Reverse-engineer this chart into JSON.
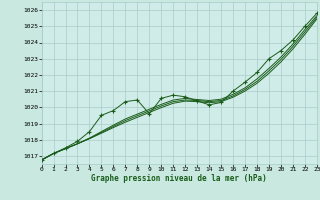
{
  "title": "Graphe pression niveau de la mer (hPa)",
  "background_color": "#c8e8e0",
  "plot_bg_color": "#d0ece8",
  "grid_color": "#a8ccc8",
  "line_color": "#1a5c1a",
  "xlim": [
    0,
    23
  ],
  "ylim": [
    1016.5,
    1026.5
  ],
  "xticks": [
    0,
    1,
    2,
    3,
    4,
    5,
    6,
    7,
    8,
    9,
    10,
    11,
    12,
    13,
    14,
    15,
    16,
    17,
    18,
    19,
    20,
    21,
    22,
    23
  ],
  "yticks": [
    1017,
    1018,
    1019,
    1020,
    1021,
    1022,
    1023,
    1024,
    1025,
    1026
  ],
  "smooth1": [
    1016.75,
    1017.15,
    1017.45,
    1017.75,
    1018.1,
    1018.5,
    1018.9,
    1019.28,
    1019.58,
    1019.88,
    1020.18,
    1020.45,
    1020.55,
    1020.48,
    1020.42,
    1020.5,
    1020.8,
    1021.2,
    1021.75,
    1022.4,
    1023.1,
    1023.9,
    1024.8,
    1025.65
  ],
  "smooth2": [
    1016.75,
    1017.15,
    1017.45,
    1017.75,
    1018.08,
    1018.45,
    1018.82,
    1019.18,
    1019.48,
    1019.78,
    1020.08,
    1020.35,
    1020.45,
    1020.42,
    1020.35,
    1020.42,
    1020.7,
    1021.1,
    1021.6,
    1022.25,
    1022.95,
    1023.75,
    1024.65,
    1025.55
  ],
  "smooth3": [
    1016.75,
    1017.15,
    1017.45,
    1017.75,
    1018.06,
    1018.4,
    1018.75,
    1019.08,
    1019.38,
    1019.68,
    1019.98,
    1020.25,
    1020.38,
    1020.35,
    1020.28,
    1020.35,
    1020.62,
    1021.0,
    1021.48,
    1022.1,
    1022.8,
    1023.6,
    1024.5,
    1025.45
  ],
  "marked": [
    1016.75,
    1017.15,
    1017.5,
    1017.9,
    1018.5,
    1019.5,
    1019.8,
    1020.35,
    1020.45,
    1019.6,
    1020.55,
    1020.75,
    1020.65,
    1020.4,
    1020.15,
    1020.3,
    1021.0,
    1021.55,
    1022.15,
    1023.0,
    1023.5,
    1024.15,
    1025.0,
    1025.8
  ]
}
